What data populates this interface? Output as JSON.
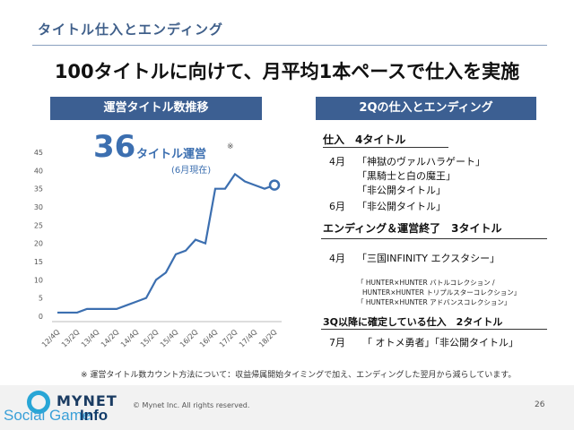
{
  "header": {
    "section_title": "タイトル仕入とエンディング",
    "headline": "100タイトルに向けて、月平均1本ペースで仕入を実施"
  },
  "left": {
    "banner": "運営タイトル数推移",
    "big_number": "36",
    "big_label": "タイトル運営",
    "big_note": "※",
    "big_sub": "(6月現在)"
  },
  "right": {
    "banner": "2Qの仕入とエンディング",
    "acq_head": "仕入　4タイトル",
    "acq": [
      {
        "month": "4月",
        "title": "「神獄のヴァルハラゲート」"
      },
      {
        "month": "",
        "title": "「黒騎士と白の魔王」"
      },
      {
        "month": "",
        "title": "「非公開タイトル」"
      },
      {
        "month": "6月",
        "title": "「非公開タイトル」"
      }
    ],
    "end_head": "エンディング＆運営終了　3タイトル",
    "end_month": "4月",
    "end_title": "「三国INFINITY エクスタシー」",
    "end_small": [
      "「 HUNTER×HUNTER バトルコレクション /",
      "HUNTER×HUNTER トリプルスターコレクション」",
      "「 HUNTER×HUNTER アドバンスコレクション」"
    ],
    "q3_head": "3Q以降に確定している仕入　2タイトル",
    "q3_month": "7月",
    "q3_titles": "「 オトメ勇者」「非公開タイトル」"
  },
  "chart_data": {
    "type": "line",
    "categories": [
      "12/4Q",
      "13/1Q",
      "13/2Q",
      "13/3Q",
      "13/4Q",
      "14/1Q",
      "14/2Q",
      "14/3Q",
      "14/4Q",
      "15/1Q",
      "15/2Q",
      "15/3Q",
      "15/4Q",
      "16/1Q",
      "16/2Q",
      "16/3Q",
      "16/4Q",
      "17/1Q",
      "17/2Q",
      "17/3Q",
      "17/4Q",
      "18/1Q",
      "18/2Q"
    ],
    "tick_labels": [
      "12/4Q",
      "13/2Q",
      "13/4Q",
      "14/2Q",
      "14/4Q",
      "15/2Q",
      "15/4Q",
      "16/2Q",
      "16/4Q",
      "17/2Q",
      "17/4Q",
      "18/2Q"
    ],
    "values": [
      1,
      1,
      1,
      2,
      2,
      2,
      2,
      3,
      4,
      5,
      10,
      12,
      17,
      18,
      21,
      20,
      35,
      35,
      39,
      37,
      36,
      35,
      36
    ],
    "ylim": [
      0,
      45
    ],
    "yticks": [
      0,
      5,
      10,
      15,
      20,
      25,
      30,
      35,
      40,
      45
    ],
    "grid": false,
    "line_color": "#3c6fb0"
  },
  "footer": {
    "footnote": "※ 運営タイトル数カウント方法について：収益帰属開始タイミングで加え、エンディングした翌月から減らしています。",
    "logo": "MYNET",
    "copyright": "© Mynet Inc. All rights reserved.",
    "page_number": "26",
    "watermark_a": "Social Game",
    "watermark_b": "Info"
  }
}
